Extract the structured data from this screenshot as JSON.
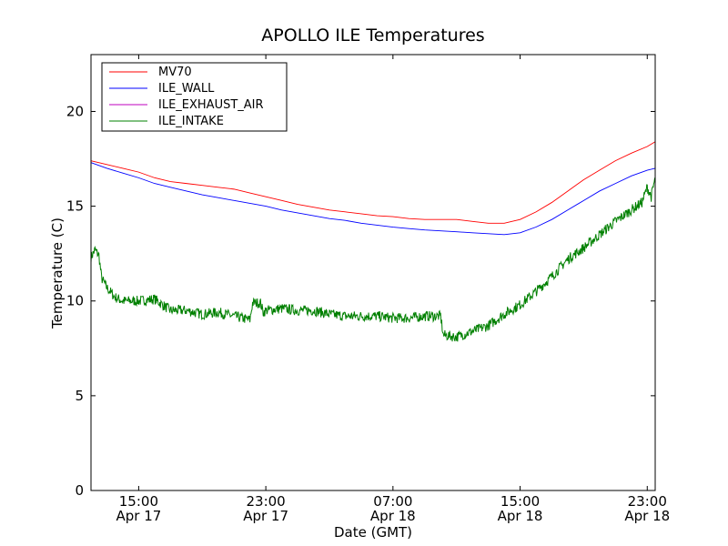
{
  "chart_data": {
    "type": "line",
    "title": "APOLLO ILE Temperatures",
    "xlabel": "Date (GMT)",
    "ylabel": "Temperature (C)",
    "xlim": [
      "2012-04-17 12:00",
      "2012-04-18 23:30"
    ],
    "ylim": [
      0,
      23
    ],
    "legend_position": "top-left",
    "grid": false,
    "y_ticks": [
      0,
      5,
      10,
      15,
      20
    ],
    "x_ticks": [
      {
        "at": "2012-04-17 15:00",
        "line1": "15:00",
        "line2": "Apr 17"
      },
      {
        "at": "2012-04-17 23:00",
        "line1": "23:00",
        "line2": "Apr 17"
      },
      {
        "at": "2012-04-18 07:00",
        "line1": "07:00",
        "line2": "Apr 18"
      },
      {
        "at": "2012-04-18 15:00",
        "line1": "15:00",
        "line2": "Apr 18"
      },
      {
        "at": "2012-04-18 23:00",
        "line1": "23:00",
        "line2": "Apr 18"
      }
    ],
    "series": [
      {
        "name": "MV70",
        "color": "#ff0000",
        "points": [
          [
            "2012-04-17 12:00",
            17.4
          ],
          [
            "2012-04-17 13:00",
            17.2
          ],
          [
            "2012-04-17 14:00",
            17.0
          ],
          [
            "2012-04-17 15:00",
            16.8
          ],
          [
            "2012-04-17 16:00",
            16.5
          ],
          [
            "2012-04-17 17:00",
            16.3
          ],
          [
            "2012-04-17 18:00",
            16.2
          ],
          [
            "2012-04-17 19:00",
            16.1
          ],
          [
            "2012-04-17 20:00",
            16.0
          ],
          [
            "2012-04-17 21:00",
            15.9
          ],
          [
            "2012-04-17 22:00",
            15.7
          ],
          [
            "2012-04-17 23:00",
            15.5
          ],
          [
            "2012-04-18 00:00",
            15.3
          ],
          [
            "2012-04-18 01:00",
            15.1
          ],
          [
            "2012-04-18 02:00",
            14.95
          ],
          [
            "2012-04-18 03:00",
            14.8
          ],
          [
            "2012-04-18 04:00",
            14.7
          ],
          [
            "2012-04-18 05:00",
            14.6
          ],
          [
            "2012-04-18 06:00",
            14.5
          ],
          [
            "2012-04-18 07:00",
            14.45
          ],
          [
            "2012-04-18 08:00",
            14.35
          ],
          [
            "2012-04-18 09:00",
            14.3
          ],
          [
            "2012-04-18 10:00",
            14.3
          ],
          [
            "2012-04-18 11:00",
            14.3
          ],
          [
            "2012-04-18 12:00",
            14.2
          ],
          [
            "2012-04-18 13:00",
            14.1
          ],
          [
            "2012-04-18 14:00",
            14.1
          ],
          [
            "2012-04-18 15:00",
            14.3
          ],
          [
            "2012-04-18 16:00",
            14.7
          ],
          [
            "2012-04-18 17:00",
            15.2
          ],
          [
            "2012-04-18 18:00",
            15.8
          ],
          [
            "2012-04-18 19:00",
            16.4
          ],
          [
            "2012-04-18 20:00",
            16.9
          ],
          [
            "2012-04-18 21:00",
            17.4
          ],
          [
            "2012-04-18 22:00",
            17.8
          ],
          [
            "2012-04-18 23:00",
            18.15
          ],
          [
            "2012-04-18 23:30",
            18.4
          ]
        ]
      },
      {
        "name": "ILE_WALL",
        "color": "#0000ff",
        "points": [
          [
            "2012-04-17 12:00",
            17.3
          ],
          [
            "2012-04-17 13:00",
            17.0
          ],
          [
            "2012-04-17 14:00",
            16.75
          ],
          [
            "2012-04-17 15:00",
            16.5
          ],
          [
            "2012-04-17 16:00",
            16.2
          ],
          [
            "2012-04-17 17:00",
            16.0
          ],
          [
            "2012-04-17 18:00",
            15.8
          ],
          [
            "2012-04-17 19:00",
            15.6
          ],
          [
            "2012-04-17 20:00",
            15.45
          ],
          [
            "2012-04-17 21:00",
            15.3
          ],
          [
            "2012-04-17 22:00",
            15.15
          ],
          [
            "2012-04-17 23:00",
            15.0
          ],
          [
            "2012-04-18 00:00",
            14.8
          ],
          [
            "2012-04-18 01:00",
            14.65
          ],
          [
            "2012-04-18 02:00",
            14.5
          ],
          [
            "2012-04-18 03:00",
            14.35
          ],
          [
            "2012-04-18 04:00",
            14.25
          ],
          [
            "2012-04-18 05:00",
            14.1
          ],
          [
            "2012-04-18 06:00",
            14.0
          ],
          [
            "2012-04-18 07:00",
            13.9
          ],
          [
            "2012-04-18 08:00",
            13.82
          ],
          [
            "2012-04-18 09:00",
            13.75
          ],
          [
            "2012-04-18 10:00",
            13.7
          ],
          [
            "2012-04-18 11:00",
            13.65
          ],
          [
            "2012-04-18 12:00",
            13.6
          ],
          [
            "2012-04-18 13:00",
            13.55
          ],
          [
            "2012-04-18 14:00",
            13.5
          ],
          [
            "2012-04-18 15:00",
            13.6
          ],
          [
            "2012-04-18 16:00",
            13.9
          ],
          [
            "2012-04-18 17:00",
            14.3
          ],
          [
            "2012-04-18 18:00",
            14.8
          ],
          [
            "2012-04-18 19:00",
            15.3
          ],
          [
            "2012-04-18 20:00",
            15.8
          ],
          [
            "2012-04-18 21:00",
            16.2
          ],
          [
            "2012-04-18 22:00",
            16.6
          ],
          [
            "2012-04-18 23:00",
            16.9
          ],
          [
            "2012-04-18 23:30",
            17.0
          ]
        ]
      },
      {
        "name": "ILE_EXHAUST_AIR",
        "color": "#bf00bf",
        "points": []
      },
      {
        "name": "ILE_INTAKE",
        "color": "#008000",
        "noisy": true,
        "points": [
          [
            "2012-04-17 12:00",
            12.3
          ],
          [
            "2012-04-17 12:15",
            12.7
          ],
          [
            "2012-04-17 12:30",
            12.4
          ],
          [
            "2012-04-17 12:40",
            11.2
          ],
          [
            "2012-04-17 13:00",
            10.7
          ],
          [
            "2012-04-17 13:30",
            10.2
          ],
          [
            "2012-04-17 14:00",
            10.0
          ],
          [
            "2012-04-17 15:00",
            10.0
          ],
          [
            "2012-04-17 16:00",
            10.1
          ],
          [
            "2012-04-17 16:30",
            9.8
          ],
          [
            "2012-04-17 17:00",
            9.5
          ],
          [
            "2012-04-17 18:00",
            9.5
          ],
          [
            "2012-04-17 19:00",
            9.3
          ],
          [
            "2012-04-17 20:00",
            9.4
          ],
          [
            "2012-04-17 21:00",
            9.2
          ],
          [
            "2012-04-17 22:00",
            9.0
          ],
          [
            "2012-04-17 22:10",
            9.9
          ],
          [
            "2012-04-17 22:40",
            9.9
          ],
          [
            "2012-04-17 22:50",
            9.4
          ],
          [
            "2012-04-17 23:00",
            9.5
          ],
          [
            "2012-04-18 00:00",
            9.6
          ],
          [
            "2012-04-18 01:00",
            9.5
          ],
          [
            "2012-04-18 02:00",
            9.5
          ],
          [
            "2012-04-18 03:00",
            9.3
          ],
          [
            "2012-04-18 04:00",
            9.2
          ],
          [
            "2012-04-18 05:00",
            9.2
          ],
          [
            "2012-04-18 06:00",
            9.2
          ],
          [
            "2012-04-18 07:00",
            9.1
          ],
          [
            "2012-04-18 08:00",
            9.1
          ],
          [
            "2012-04-18 09:00",
            9.2
          ],
          [
            "2012-04-18 10:00",
            9.2
          ],
          [
            "2012-04-18 10:10",
            8.2
          ],
          [
            "2012-04-18 11:00",
            8.1
          ],
          [
            "2012-04-18 12:00",
            8.4
          ],
          [
            "2012-04-18 13:00",
            8.7
          ],
          [
            "2012-04-18 14:00",
            9.3
          ],
          [
            "2012-04-18 15:00",
            9.8
          ],
          [
            "2012-04-18 16:00",
            10.5
          ],
          [
            "2012-04-18 17:00",
            11.3
          ],
          [
            "2012-04-18 18:00",
            12.2
          ],
          [
            "2012-04-18 19:00",
            12.8
          ],
          [
            "2012-04-18 20:00",
            13.5
          ],
          [
            "2012-04-18 21:00",
            14.2
          ],
          [
            "2012-04-18 22:00",
            14.8
          ],
          [
            "2012-04-18 22:40",
            15.2
          ],
          [
            "2012-04-18 23:00",
            16.0
          ],
          [
            "2012-04-18 23:15",
            15.5
          ],
          [
            "2012-04-18 23:30",
            16.5
          ]
        ]
      }
    ]
  }
}
